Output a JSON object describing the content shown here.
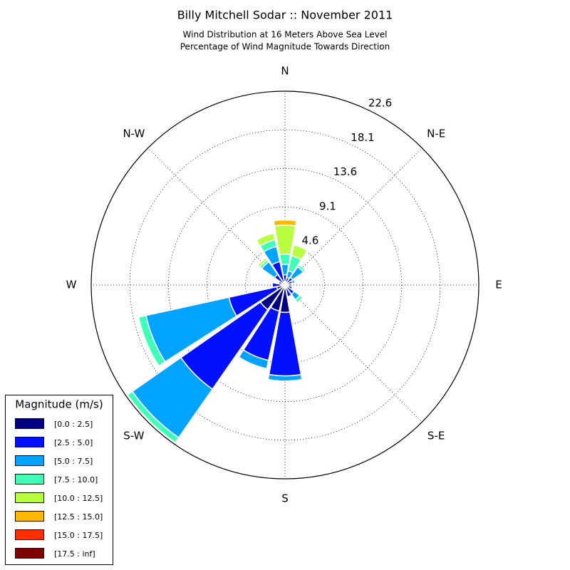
{
  "chart_data": {
    "type": "windrose",
    "title": "Billy Mitchell Sodar :: November 2011",
    "subtitle": [
      "Wind Distribution at 16 Meters Above Sea Level",
      "Percentage of Wind Magnitude Towards Direction"
    ],
    "categories": [
      "N",
      null,
      "N-E",
      null,
      "E",
      null,
      "S-E",
      null,
      "S",
      null,
      "S-W",
      null,
      "W",
      null,
      "N-W",
      null
    ],
    "rlim": [
      0,
      22.6
    ],
    "rticks": [
      4.6,
      9.1,
      13.6,
      18.1,
      22.6
    ],
    "grid": true,
    "legend_title": "Magnitude (m/s)",
    "legend_position": "lower-left",
    "series": [
      {
        "name": "[0.0 : 2.5]",
        "color": "#000080",
        "values": [
          0.4,
          0.3,
          0.3,
          0.3,
          0.3,
          0.3,
          0.3,
          0.4,
          3.2,
          3.1,
          3.5,
          1.0,
          0.5,
          0.3,
          0.3,
          0.3
        ]
      },
      {
        "name": "[2.5 : 5.0]",
        "color": "#0010ff",
        "values": [
          0.8,
          0.6,
          0.8,
          0.6,
          0.5,
          0.6,
          1.0,
          1.0,
          7.4,
          5.9,
          11.3,
          5.7,
          1.0,
          0.5,
          1.2,
          2.5
        ]
      },
      {
        "name": "[5.0 : 7.5]",
        "color": "#00a4ff",
        "values": [
          1.2,
          0.8,
          1.5,
          0.3,
          0,
          0,
          0.8,
          0,
          0.6,
          1.0,
          6.9,
          9.9,
          0,
          0,
          1.8,
          1.8
        ]
      },
      {
        "name": "[7.5 : 10.0]",
        "color": "#40ffb7",
        "values": [
          1.2,
          1.8,
          0.3,
          0,
          0,
          0,
          0.4,
          0,
          0,
          0,
          0.7,
          0.9,
          0,
          0,
          0.3,
          0.8
        ]
      },
      {
        "name": "[10.0 : 12.5]",
        "color": "#b7ff40",
        "values": [
          3.4,
          1.3,
          0,
          0,
          0,
          0,
          0,
          0,
          0,
          0,
          0,
          0,
          0,
          0,
          0.3,
          0.8
        ]
      },
      {
        "name": "[12.5 : 15.0]",
        "color": "#ffb900",
        "values": [
          0.6,
          0,
          0,
          0,
          0,
          0,
          0,
          0,
          0,
          0,
          0,
          0,
          0,
          0,
          0,
          0
        ]
      },
      {
        "name": "[15.0 : 17.5]",
        "color": "#ff3000",
        "values": [
          0,
          0,
          0,
          0,
          0,
          0,
          0,
          0,
          0,
          0,
          0,
          0,
          0,
          0,
          0,
          0
        ]
      },
      {
        "name": "[17.5 : inf]",
        "color": "#800000",
        "values": [
          0,
          0,
          0,
          0,
          0,
          0,
          0,
          0,
          0,
          0,
          0,
          0,
          0,
          0,
          0,
          0
        ]
      }
    ]
  }
}
